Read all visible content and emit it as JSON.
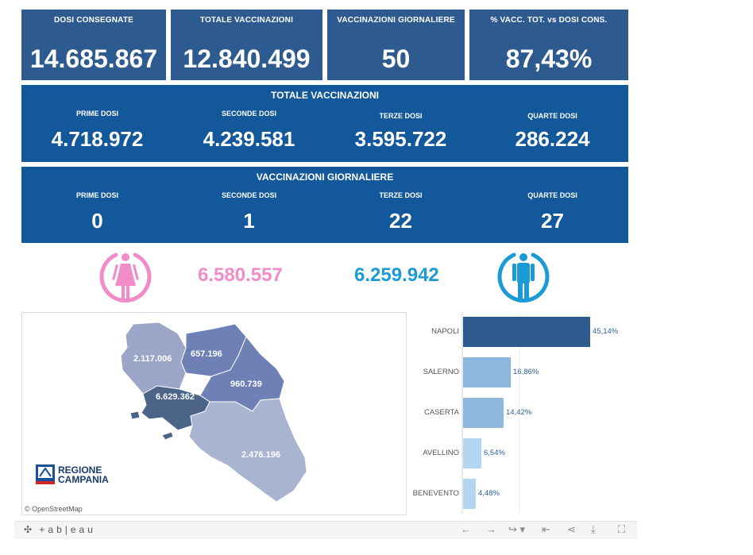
{
  "kpis": [
    {
      "label": "DOSI  CONSEGNATE",
      "value": "14.685.867"
    },
    {
      "label": "TOTALE VACCINAZIONI",
      "value": "12.840.499"
    },
    {
      "label": "VACCINAZIONI GIORNALIERE",
      "value": "50"
    },
    {
      "label": "% VACC. TOT. vs DOSI CONS.",
      "value": "87,43%"
    }
  ],
  "totale": {
    "title": "TOTALE VACCINAZIONI",
    "cells": [
      {
        "label": "PRIME DOSI",
        "value": "4.718.972"
      },
      {
        "label": "SECONDE DOSI",
        "value": "4.239.581"
      },
      {
        "label": "TERZE DOSI",
        "value": "3.595.722"
      },
      {
        "label": "QUARTE DOSI",
        "value": "286.224"
      }
    ]
  },
  "giornaliere": {
    "title": "VACCINAZIONI GIORNALIERE",
    "cells": [
      {
        "label": "PRIME DOSI",
        "value": "0"
      },
      {
        "label": "SECONDE DOSI",
        "value": "1"
      },
      {
        "label": "TERZE DOSI",
        "value": "22"
      },
      {
        "label": "QUARTE DOSI",
        "value": "27"
      }
    ]
  },
  "gender": {
    "female": {
      "value": "6.580.557",
      "color": "#f28cc8",
      "icon": "female-icon"
    },
    "male": {
      "value": "6.259.942",
      "color": "#1b9ad6",
      "icon": "male-icon"
    }
  },
  "map": {
    "provinces": [
      {
        "name": "caserta",
        "value": "2.117.006"
      },
      {
        "name": "benevento",
        "value": "657.196"
      },
      {
        "name": "avellino",
        "value": "960.739"
      },
      {
        "name": "napoli",
        "value": "6.629.362"
      },
      {
        "name": "salerno",
        "value": "2.476.196"
      }
    ],
    "logo_line1": "REGIONE",
    "logo_line2": "CAMPANIA",
    "attribution": "© OpenStreetMap"
  },
  "chart_data": {
    "type": "bar",
    "orientation": "horizontal",
    "categories": [
      "NAPOLI",
      "SALERNO",
      "CASERTA",
      "AVELLINO",
      "BENEVENTO"
    ],
    "values": [
      45.14,
      16.86,
      14.42,
      6.54,
      4.48
    ],
    "value_labels": [
      "45,14%",
      "16,86%",
      "14,42%",
      "6,54%",
      "4,48%"
    ],
    "colors": [
      "#2e5b8f",
      "#8db7dd",
      "#8db7dd",
      "#b3d7f2",
      "#b3d7f2"
    ],
    "title": "",
    "xlabel": "",
    "ylabel": ""
  },
  "toolbar": {
    "brand": "+ab|eau",
    "icons": [
      "undo-icon",
      "redo-icon",
      "revert-icon",
      "reset-icon",
      "share-icon",
      "download-icon",
      "fullscreen-icon"
    ]
  }
}
